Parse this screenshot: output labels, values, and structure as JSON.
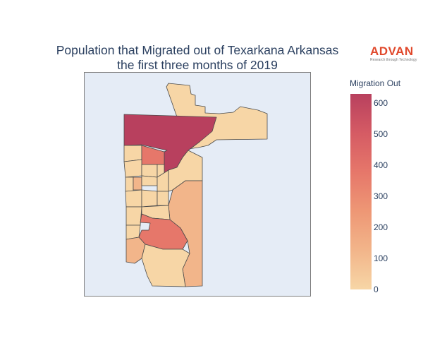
{
  "title": {
    "line1": "Population that Migrated out of Texarkana Arkansas",
    "line2": "the first three months of 2019"
  },
  "logo": {
    "text": "ADVAN",
    "tagline": "Research through Technology",
    "color": "#e0482b"
  },
  "colorbar": {
    "title": "Migration Out",
    "ticks": [
      "0",
      "100",
      "200",
      "300",
      "400",
      "500",
      "600"
    ],
    "range": [
      0,
      630
    ],
    "colorscale": [
      "#f7d6a6",
      "#f2b58a",
      "#ee9775",
      "#e6776a",
      "#d55b64",
      "#b8405e"
    ]
  },
  "chart_data": {
    "type": "choropleth",
    "region": "Texarkana, Arkansas",
    "metric": "Migration Out",
    "regions": [
      {
        "id": "northeast",
        "value": 30
      },
      {
        "id": "north-central",
        "value": 630
      },
      {
        "id": "mid-block",
        "value": 380
      },
      {
        "id": "south-central",
        "value": 420
      },
      {
        "id": "southeast",
        "value": 220
      },
      {
        "id": "southwest",
        "value": 190
      },
      {
        "id": "south",
        "value": 70
      }
    ]
  }
}
